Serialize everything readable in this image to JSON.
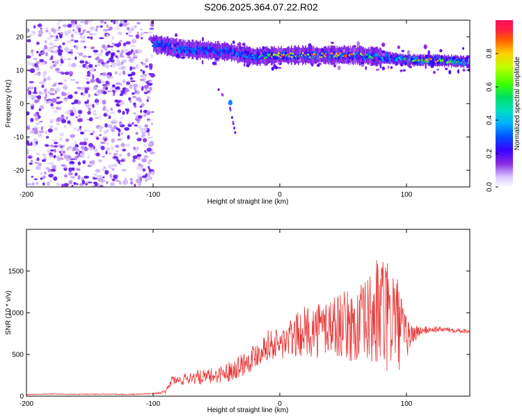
{
  "title": "S206.2025.364.07.22.R02",
  "chart_data": [
    {
      "type": "heatmap",
      "title": "",
      "xlabel": "Height of straight line (km)",
      "ylabel": "Frequency (Hz)",
      "xlim": [
        -200,
        150
      ],
      "ylim": [
        -25,
        25
      ],
      "xticks": [
        -200,
        -100,
        0,
        100
      ],
      "yticks": [
        -20,
        -10,
        0,
        10,
        20
      ],
      "colorbar": {
        "label": "Normalized spectral amplitude",
        "range": [
          0.0,
          1.0
        ],
        "ticks": [
          "0.0",
          "0.2",
          "0.4",
          "0.6",
          "0.8"
        ]
      },
      "features": [
        {
          "name": "noise-region",
          "x_range": [
            -200,
            -100
          ],
          "y_range": [
            -25,
            25
          ],
          "amplitude": 0.1
        },
        {
          "name": "spectral-band",
          "x": [
            -100,
            -80,
            -60,
            -40,
            -20,
            0,
            20,
            40,
            60,
            80,
            100,
            120,
            150
          ],
          "y": [
            18,
            16.5,
            16,
            15.5,
            14,
            14.5,
            14.5,
            14.5,
            14.5,
            14,
            13,
            13,
            12.5
          ],
          "amplitude": [
            0.3,
            0.35,
            0.35,
            0.3,
            0.45,
            0.9,
            0.95,
            0.95,
            0.9,
            0.4,
            0.6,
            0.9,
            0.5
          ]
        },
        {
          "name": "weak-tail",
          "x": [
            -50,
            -40,
            -35
          ],
          "y": [
            5,
            0,
            -9
          ],
          "amplitude": 0.2
        }
      ]
    },
    {
      "type": "line",
      "title": "",
      "xlabel": "Height of straight line (km)",
      "ylabel": "SNR (10 * v/v)",
      "xlim": [
        -200,
        150
      ],
      "ylim": [
        0,
        2000
      ],
      "xticks": [
        -200,
        -100,
        0,
        100
      ],
      "yticks": [
        0,
        500,
        1000,
        1500
      ],
      "series": [
        {
          "name": "SNR",
          "color": "#e83030",
          "x": [
            -200,
            -180,
            -160,
            -140,
            -120,
            -100,
            -90,
            -85,
            -80,
            -70,
            -60,
            -50,
            -40,
            -30,
            -20,
            -10,
            0,
            10,
            20,
            30,
            40,
            50,
            60,
            70,
            75,
            80,
            85,
            90,
            95,
            100,
            110,
            120,
            130,
            140,
            150
          ],
          "y": [
            20,
            25,
            22,
            25,
            20,
            30,
            50,
            200,
            180,
            230,
            220,
            250,
            300,
            380,
            480,
            620,
            620,
            700,
            780,
            800,
            850,
            860,
            820,
            900,
            950,
            1050,
            900,
            1000,
            800,
            700,
            780,
            800,
            800,
            790,
            780
          ],
          "amplitude": [
            5,
            5,
            5,
            5,
            5,
            5,
            20,
            60,
            60,
            80,
            90,
            100,
            120,
            150,
            160,
            180,
            200,
            250,
            300,
            350,
            400,
            400,
            450,
            550,
            650,
            800,
            700,
            650,
            500,
            250,
            60,
            40,
            30,
            30,
            30
          ]
        }
      ]
    }
  ]
}
